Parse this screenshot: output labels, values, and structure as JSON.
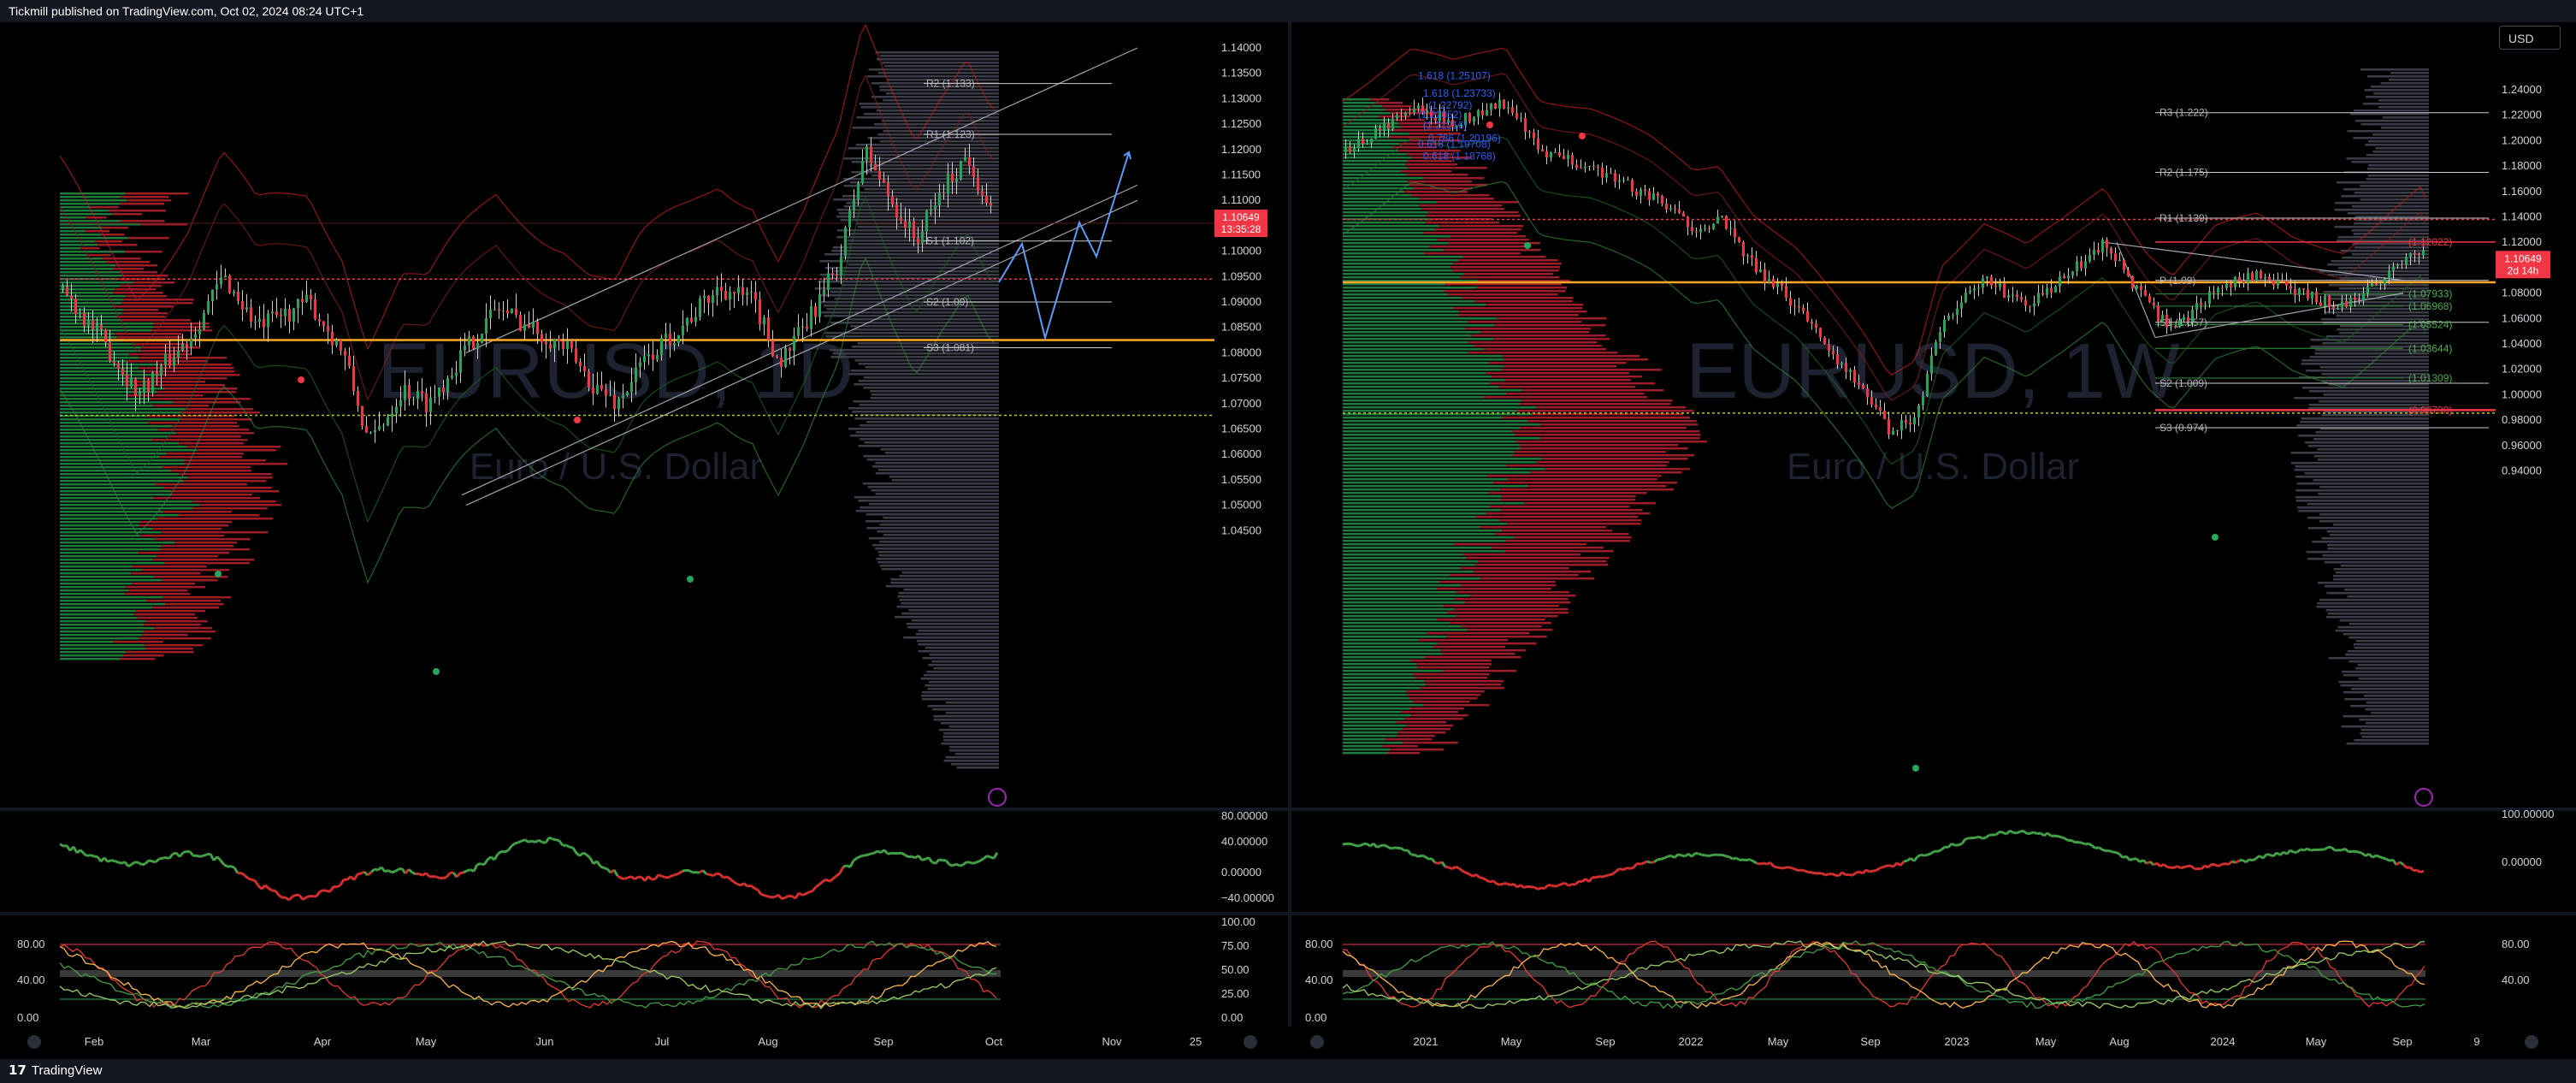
{
  "header": {
    "published": "Tickmill published on TradingView.com, Oct 02, 2024 08:24 UTC+1"
  },
  "footer": {
    "logo": "TradingView"
  },
  "currency_button": "USD",
  "colors": {
    "up": "#26a65b",
    "down": "#f23645",
    "pivot_orange": "#ffa726",
    "bg": "#000000",
    "text": "#d1d4dc"
  },
  "left_chart": {
    "watermark_symbol": "EURUSD, 1D",
    "watermark_desc": "Euro / U.S. Dollar",
    "price_labels": [
      "1.14000",
      "1.13500",
      "1.13000",
      "1.12500",
      "1.12000",
      "1.11500",
      "1.11000",
      "1.10500",
      "1.10000",
      "1.09500",
      "1.09000",
      "1.08500",
      "1.08000",
      "1.07500",
      "1.07000",
      "1.06500",
      "1.06000",
      "1.05500",
      "1.05000",
      "1.04500"
    ],
    "current_price": "1.10649",
    "countdown": "13:35:28",
    "pivots": [
      {
        "label": "R2 (1.133)",
        "value": 1.133
      },
      {
        "label": "R1 (1.123)",
        "value": 1.123
      },
      {
        "label": "S1 (1.102)",
        "value": 1.102
      },
      {
        "label": "S2 (1.09)",
        "value": 1.09
      },
      {
        "label": "S3 (1.081)",
        "value": 1.081
      }
    ],
    "macd_labels": [
      "80.00000",
      "40.00000",
      "0.00000",
      "−40.00000"
    ],
    "stoch_left_labels": [
      "80.00",
      "40.00",
      "0.00"
    ],
    "stoch_right_labels": [
      "100.00",
      "75.00",
      "50.00",
      "25.00",
      "0.00"
    ],
    "time_labels": [
      "Feb",
      "Mar",
      "Apr",
      "May",
      "Jun",
      "Jul",
      "Aug",
      "Sep",
      "Oct",
      "Nov",
      "25"
    ]
  },
  "right_chart": {
    "watermark_symbol": "EURUSD, 1W",
    "watermark_desc": "Euro / U.S. Dollar",
    "price_labels": [
      "1.24000",
      "1.22000",
      "1.20000",
      "1.18000",
      "1.16000",
      "1.14000",
      "1.12000",
      "1.10000",
      "1.08000",
      "1.06000",
      "1.04000",
      "1.02000",
      "1.00000",
      "0.98000",
      "0.96000",
      "0.94000"
    ],
    "current_price": "1.10649",
    "countdown": "2d 14h",
    "pivots": [
      {
        "label": "R3 (1.222)",
        "value": 1.222
      },
      {
        "label": "R2 (1.175)",
        "value": 1.175
      },
      {
        "label": "R1 (1.139)",
        "value": 1.139
      },
      {
        "label": "P (1.09)",
        "value": 1.09
      },
      {
        "label": "S1 (1.057)",
        "value": 1.057
      },
      {
        "label": "S2 (1.009)",
        "value": 1.009
      },
      {
        "label": "S3 (0.974)",
        "value": 0.974
      }
    ],
    "fib_labels": [
      "1.618 (1.25107)",
      "1.618 (1.23733)",
      "(1.22792)",
      "(1.22052)",
      "(1.21216)",
      "0.786 (1.20196)",
      "0.618 (1.19708)",
      "0.618 (1.18768)"
    ],
    "level_labels": [
      "(1.12022)",
      "(1.07933)",
      "(1.06968)",
      "(1.05524)",
      "(1.03644)",
      "(1.01309)",
      "(0.98790)"
    ],
    "macd_labels": [
      "100.00000",
      "0.00000"
    ],
    "stoch_labels": [
      "80.00",
      "40.00",
      "0.00"
    ],
    "time_labels": [
      "2021",
      "May",
      "Sep",
      "2022",
      "May",
      "Sep",
      "2023",
      "May",
      "Aug",
      "2024",
      "May",
      "Sep",
      "9"
    ]
  }
}
